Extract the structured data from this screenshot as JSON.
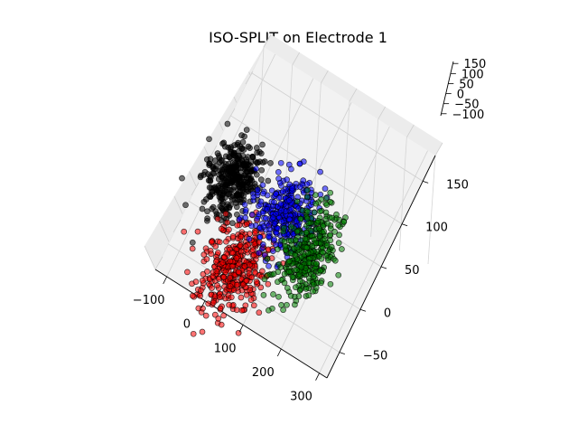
{
  "chart_data": {
    "type": "scatter",
    "projection": "3d",
    "title": "ISO-SPLIT on Electrode 1",
    "xlabel": "",
    "ylabel": "",
    "zlabel": "",
    "grid": true,
    "xlim": [
      -130,
      320
    ],
    "ylim": [
      -80,
      180
    ],
    "zlim": [
      -110,
      160
    ],
    "xticks": [
      "−100",
      "0",
      "100",
      "200",
      "300"
    ],
    "yticks": [
      "−50",
      "0",
      "50",
      "100",
      "150"
    ],
    "zticks": [
      "−100",
      "−50",
      "0",
      "50",
      "100",
      "150"
    ],
    "series": [
      {
        "color": "#000000",
        "center": [
          -65,
          40,
          0
        ],
        "spread": [
          30,
          20,
          14
        ],
        "count": 360
      },
      {
        "color": "#ff0000",
        "center": [
          25,
          -40,
          0
        ],
        "spread": [
          36,
          26,
          16
        ],
        "count": 380
      },
      {
        "color": "#0000ff",
        "center": [
          75,
          35,
          0
        ],
        "spread": [
          34,
          20,
          16
        ],
        "count": 330
      },
      {
        "color": "#008000",
        "center": [
          160,
          15,
          0
        ],
        "spread": [
          30,
          26,
          16
        ],
        "count": 360
      }
    ]
  }
}
